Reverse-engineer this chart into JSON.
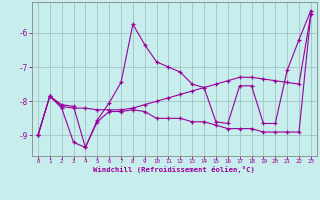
{
  "xlabel": "Windchill (Refroidissement éolien,°C)",
  "bg_color": "#c8eded",
  "line_color": "#990099",
  "grid_color": "#99bbbb",
  "xlim": [
    -0.5,
    23.5
  ],
  "ylim": [
    -9.6,
    -5.1
  ],
  "yticks": [
    -9,
    -8,
    -7,
    -6
  ],
  "xticks": [
    0,
    1,
    2,
    3,
    4,
    5,
    6,
    7,
    8,
    9,
    10,
    11,
    12,
    13,
    14,
    15,
    16,
    17,
    18,
    19,
    20,
    21,
    22,
    23
  ],
  "curve1_x": [
    0,
    1,
    2,
    3,
    4,
    5,
    6,
    7,
    8,
    9,
    10,
    11,
    12,
    13,
    14,
    15,
    16,
    17,
    18,
    19,
    20,
    21,
    22,
    23
  ],
  "curve1_y": [
    -9.0,
    -7.85,
    -8.1,
    -8.15,
    -9.35,
    -8.55,
    -8.05,
    -7.45,
    -5.75,
    -6.35,
    -6.85,
    -7.0,
    -7.15,
    -7.5,
    -7.6,
    -8.6,
    -8.65,
    -7.55,
    -7.55,
    -8.65,
    -8.65,
    -7.1,
    -6.2,
    -5.35
  ],
  "curve2_x": [
    0,
    1,
    2,
    3,
    4,
    5,
    6,
    7,
    8,
    9,
    10,
    11,
    12,
    13,
    14,
    15,
    16,
    17,
    18,
    19,
    20,
    21,
    22,
    23
  ],
  "curve2_y": [
    -9.0,
    -7.85,
    -8.15,
    -8.2,
    -8.2,
    -8.25,
    -8.25,
    -8.25,
    -8.2,
    -8.1,
    -8.0,
    -7.9,
    -7.8,
    -7.7,
    -7.6,
    -7.5,
    -7.4,
    -7.3,
    -7.3,
    -7.35,
    -7.4,
    -7.45,
    -7.5,
    -5.45
  ],
  "curve3_x": [
    0,
    1,
    2,
    3,
    4,
    5,
    6,
    7,
    8,
    9,
    10,
    11,
    12,
    13,
    14,
    15,
    16,
    17,
    18,
    19,
    20,
    21,
    22,
    23
  ],
  "curve3_y": [
    -9.0,
    -7.85,
    -8.2,
    -9.2,
    -9.35,
    -8.6,
    -8.3,
    -8.3,
    -8.25,
    -8.3,
    -8.5,
    -8.5,
    -8.5,
    -8.6,
    -8.6,
    -8.7,
    -8.8,
    -8.8,
    -8.8,
    -8.9,
    -8.9,
    -8.9,
    -8.9,
    -5.45
  ]
}
